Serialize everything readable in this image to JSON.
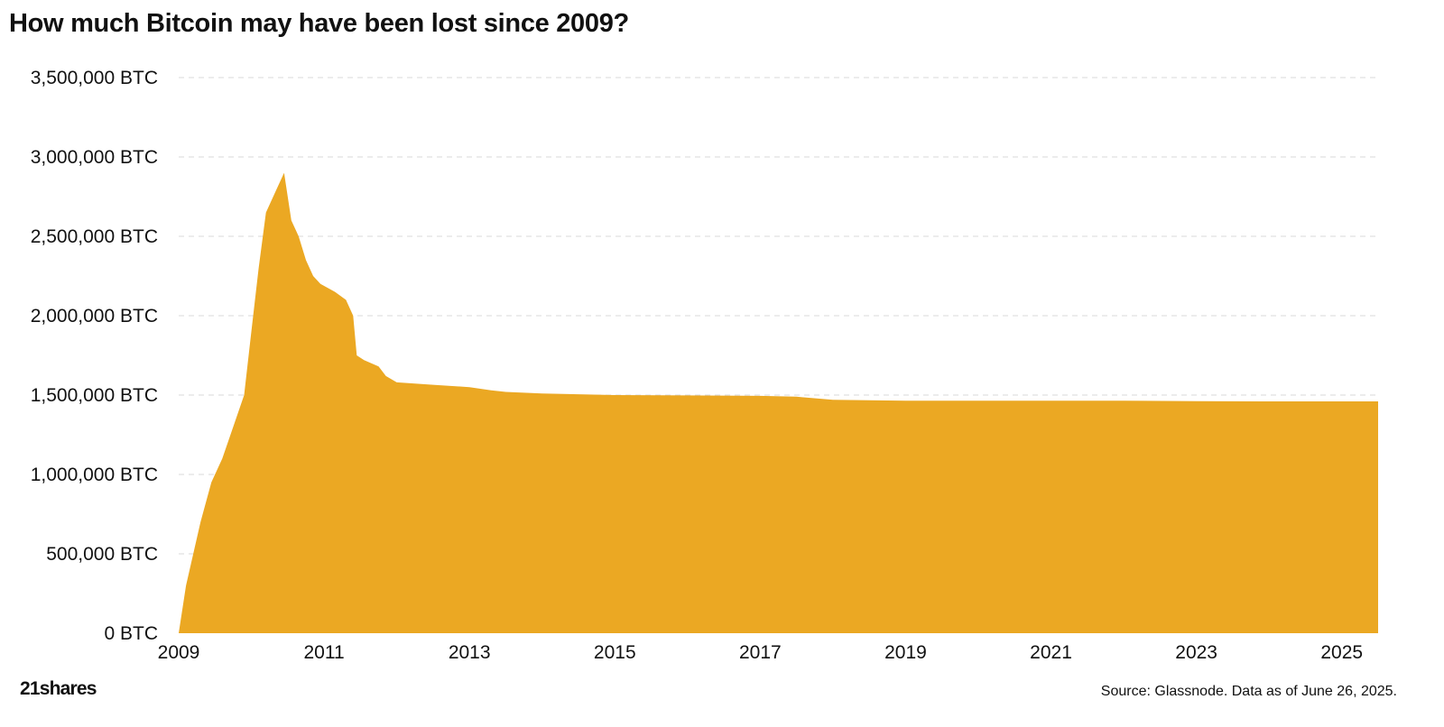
{
  "title": "How much Bitcoin may have been lost since 2009?",
  "source": "Source: Glassnode. Data as of June 26, 2025.",
  "logo": "21shares",
  "colors": {
    "area": "#EBA823",
    "grid": "#d9d9d9",
    "text": "#111111"
  },
  "chart_data": {
    "type": "area",
    "title": "How much Bitcoin may have been lost since 2009?",
    "xlabel": "",
    "ylabel": "",
    "xlim": [
      2009.0,
      2025.5
    ],
    "ylim": [
      0,
      3500000
    ],
    "grid": true,
    "legend": "none",
    "y_ticks": [
      {
        "value": 0,
        "label": "0 BTC"
      },
      {
        "value": 500000,
        "label": "500,000 BTC"
      },
      {
        "value": 1000000,
        "label": "1,000,000 BTC"
      },
      {
        "value": 1500000,
        "label": "1,500,000 BTC"
      },
      {
        "value": 2000000,
        "label": "2,000,000 BTC"
      },
      {
        "value": 2500000,
        "label": "2,500,000 BTC"
      },
      {
        "value": 3000000,
        "label": "3,000,000 BTC"
      },
      {
        "value": 3500000,
        "label": "3,500,000 BTC"
      }
    ],
    "x_ticks": [
      {
        "value": 2009,
        "label": "2009"
      },
      {
        "value": 2011,
        "label": "2011"
      },
      {
        "value": 2013,
        "label": "2013"
      },
      {
        "value": 2015,
        "label": "2015"
      },
      {
        "value": 2017,
        "label": "2017"
      },
      {
        "value": 2019,
        "label": "2019"
      },
      {
        "value": 2021,
        "label": "2021"
      },
      {
        "value": 2023,
        "label": "2023"
      },
      {
        "value": 2025,
        "label": "2025"
      }
    ],
    "series": [
      {
        "x": [
          2009.0,
          2009.1,
          2009.3,
          2009.45,
          2009.6,
          2009.75,
          2009.9,
          2010.0,
          2010.1,
          2010.2,
          2010.35,
          2010.45,
          2010.5,
          2010.55,
          2010.6,
          2010.65,
          2010.75,
          2010.85,
          2010.95,
          2011.15,
          2011.3,
          2011.4,
          2011.45,
          2011.55,
          2011.75,
          2011.85,
          2012.0,
          2012.5,
          2013.0,
          2013.3,
          2013.5,
          2014.0,
          2014.5,
          2015.0,
          2016.0,
          2017.0,
          2017.5,
          2018.0,
          2019.0,
          2021.0,
          2022.0,
          2023.0,
          2024.0,
          2025.0,
          2025.5
        ],
        "y": [
          0,
          300000,
          700000,
          950000,
          1100000,
          1300000,
          1500000,
          1900000,
          2300000,
          2650000,
          2800000,
          2900000,
          2750000,
          2600000,
          2550000,
          2500000,
          2350000,
          2250000,
          2200000,
          2150000,
          2100000,
          2000000,
          1750000,
          1720000,
          1680000,
          1620000,
          1580000,
          1565000,
          1550000,
          1530000,
          1520000,
          1510000,
          1505000,
          1500000,
          1498000,
          1495000,
          1490000,
          1470000,
          1465000,
          1465000,
          1465000,
          1462000,
          1460000,
          1460000,
          1460000
        ]
      }
    ]
  }
}
